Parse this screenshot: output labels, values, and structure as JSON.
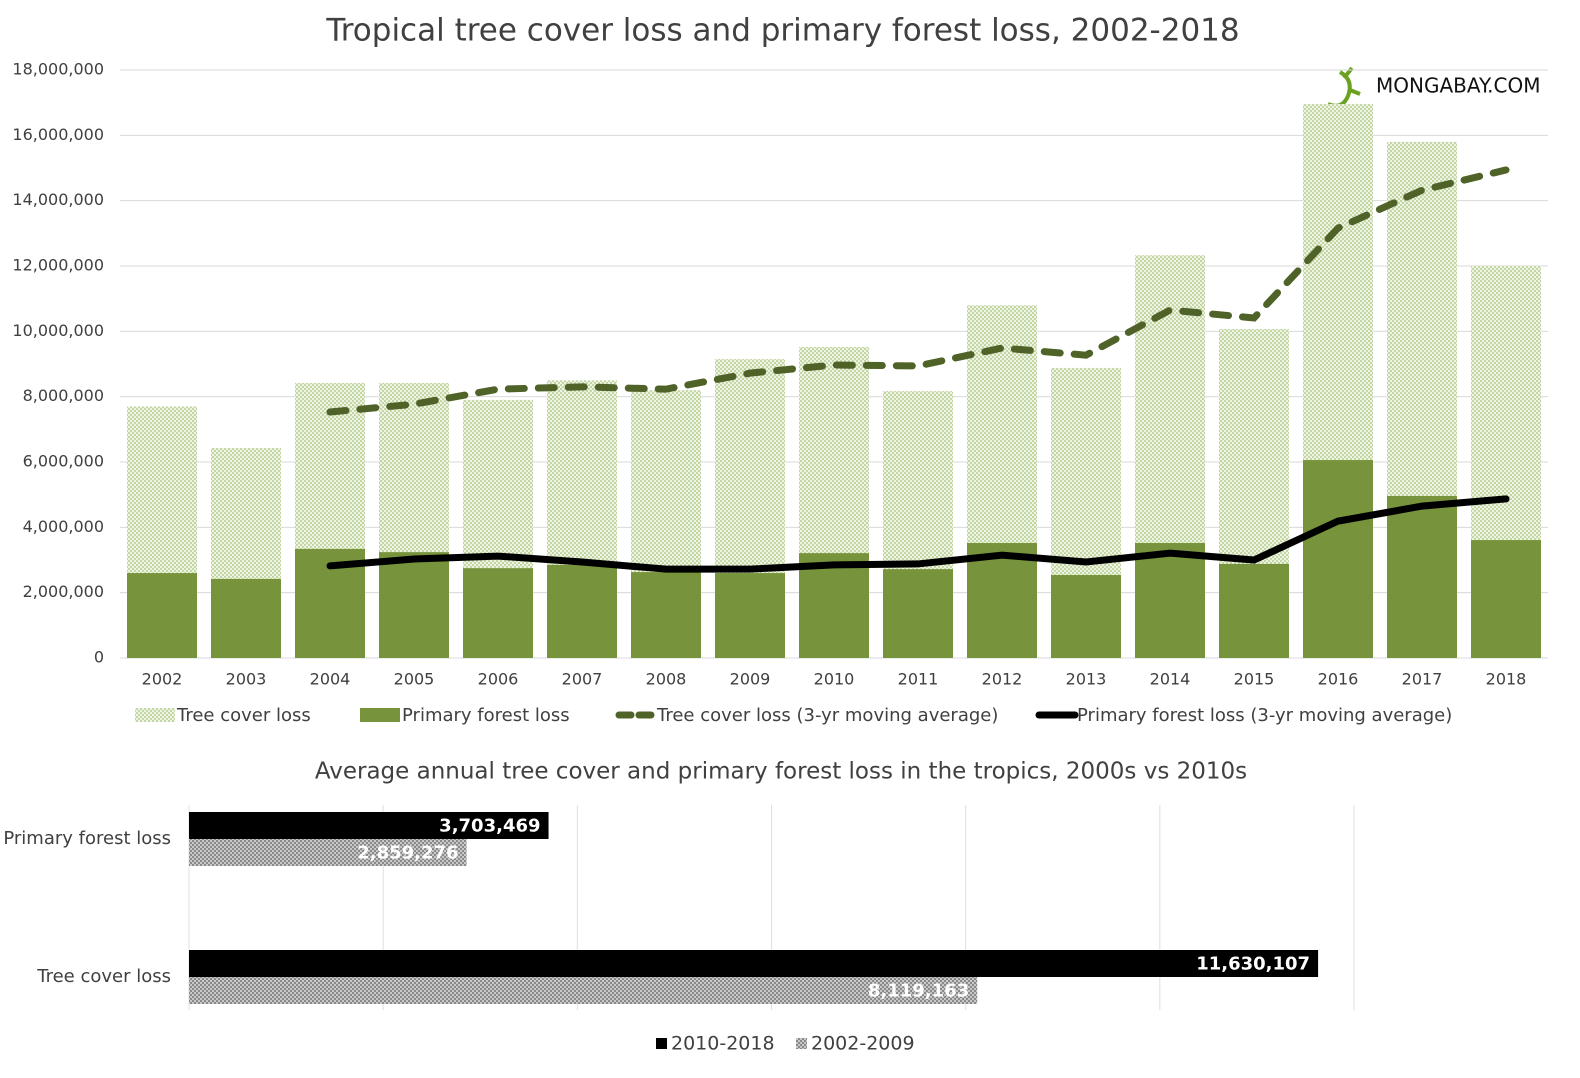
{
  "chart_data": [
    {
      "type": "bar",
      "title": "Tropical tree cover loss and primary forest loss, 2002-2018",
      "watermark": "MONGABAY.COM",
      "categories": [
        "2002",
        "2003",
        "2004",
        "2005",
        "2006",
        "2007",
        "2008",
        "2009",
        "2010",
        "2011",
        "2012",
        "2013",
        "2014",
        "2015",
        "2016",
        "2017",
        "2018"
      ],
      "series": [
        {
          "name": "Tree cover loss",
          "type": "bar",
          "color": "#d7e4c2",
          "values": [
            7700000,
            6430000,
            8420000,
            8420000,
            7900000,
            8500000,
            8200000,
            9150000,
            9520000,
            8170000,
            10800000,
            8880000,
            12330000,
            10070000,
            16960000,
            15800000,
            12000000
          ]
        },
        {
          "name": "Primary forest loss",
          "type": "bar",
          "color": "#77933c",
          "values": [
            2600000,
            2420000,
            3340000,
            3240000,
            2750000,
            2850000,
            2630000,
            2600000,
            3210000,
            2720000,
            3520000,
            2540000,
            3520000,
            2880000,
            6060000,
            4960000,
            3610000
          ]
        },
        {
          "name": "Tree cover loss (3-yr moving average)",
          "type": "line",
          "dash": true,
          "color": "#4f6228",
          "values": [
            null,
            null,
            7530000,
            7770000,
            8230000,
            8300000,
            8230000,
            8720000,
            8970000,
            8940000,
            9490000,
            9270000,
            10650000,
            10410000,
            13160000,
            14320000,
            14940000
          ]
        },
        {
          "name": "Primary forest loss (3-yr moving average)",
          "type": "line",
          "dash": false,
          "color": "#000000",
          "values": [
            null,
            null,
            2820000,
            3030000,
            3120000,
            2940000,
            2720000,
            2720000,
            2850000,
            2880000,
            3150000,
            2940000,
            3210000,
            3000000,
            4190000,
            4650000,
            4870000
          ]
        }
      ],
      "ylim": [
        0,
        18000000
      ],
      "yticks": [
        0,
        {
          "value": 2000000,
          "label": "2,000,000"
        },
        {
          "value": 4000000,
          "label": "4,000,000"
        },
        {
          "value": 6000000,
          "label": "6,000,000"
        },
        {
          "value": 8000000,
          "label": "8,000,000"
        },
        {
          "value": 10000000,
          "label": "10,000,000"
        },
        {
          "value": 12000000,
          "label": "12,000,000"
        },
        {
          "value": 14000000,
          "label": "14,000,000"
        },
        {
          "value": 16000000,
          "label": "16,000,000"
        },
        {
          "value": 18000000,
          "label": "18,000,000"
        }
      ],
      "grid": true,
      "legend": "bottom"
    },
    {
      "type": "hbar",
      "title": "Average annual tree cover and primary forest loss in the tropics, 2000s vs 2010s",
      "categories": [
        "Primary forest loss",
        "Tree cover loss"
      ],
      "series": [
        {
          "name": "2010-2018",
          "color": "#000000",
          "values": [
            3703469,
            11630107
          ],
          "value_labels": [
            "3,703,469",
            "11,630,107"
          ]
        },
        {
          "name": "2002-2009",
          "color": "#9a9a9a",
          "values": [
            2859276,
            8119163
          ],
          "value_labels": [
            "2,859,276",
            "8,119,163"
          ]
        }
      ],
      "xlim": [
        0,
        12000000
      ],
      "xticks": [
        0,
        2000000,
        4000000,
        6000000,
        8000000,
        10000000,
        12000000
      ],
      "grid": true,
      "legend": "bottom"
    }
  ]
}
